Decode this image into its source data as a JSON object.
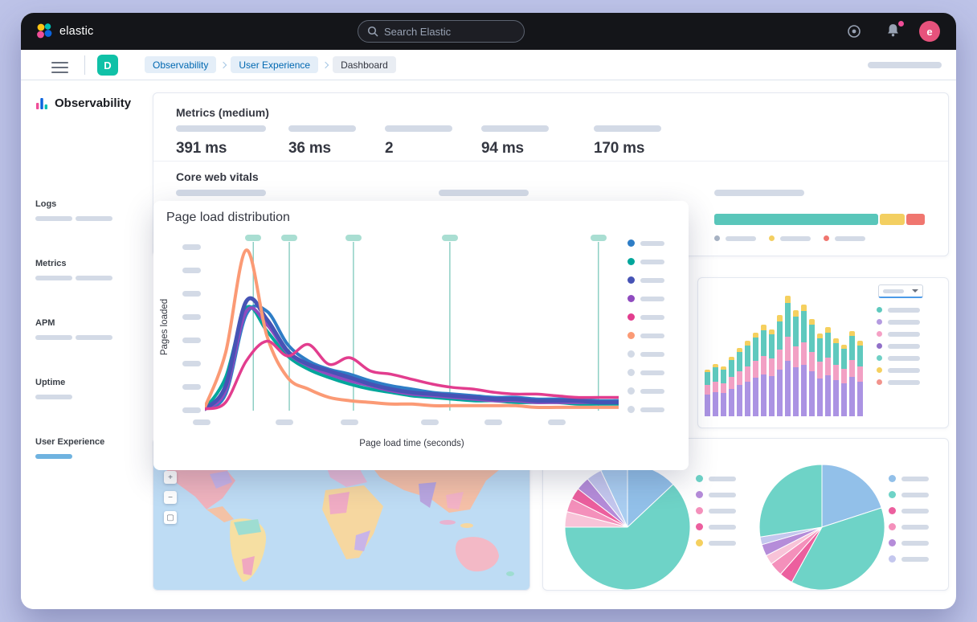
{
  "topbar": {
    "brand": "elastic",
    "search_placeholder": "Search Elastic",
    "avatar_initial": "e"
  },
  "nav": {
    "space_badge": "D",
    "breadcrumbs": [
      {
        "label": "Observability"
      },
      {
        "label": "User Experience"
      },
      {
        "label": "Dashboard"
      }
    ]
  },
  "sidebar": {
    "title": "Observability",
    "items": [
      {
        "label": "Logs"
      },
      {
        "label": "Metrics"
      },
      {
        "label": "APM"
      },
      {
        "label": "Uptime"
      },
      {
        "label": "User Experience",
        "active": true
      }
    ]
  },
  "metrics_panel": {
    "title": "Metrics (medium)",
    "values": [
      "391 ms",
      "36 ms",
      "2",
      "94 ms",
      "170 ms"
    ],
    "core_title": "Core web vitals"
  },
  "vitals": {
    "segments": [
      {
        "color": "#59c6ba",
        "pct": 79
      },
      {
        "color": "#f3cf61",
        "pct": 12
      },
      {
        "color": "#f0766f",
        "pct": 9
      }
    ],
    "legend_colors": [
      "#a7b2c3",
      "#f3cf61",
      "#f0766f"
    ]
  },
  "page_load": {
    "title": "Page load distribution",
    "ylabel": "Pages loaded",
    "xlabel": "Page load time (seconds)",
    "vlines": [
      0.117,
      0.204,
      0.359,
      0.592,
      0.951
    ],
    "y_tick_count": 8,
    "x_tick_offsets": [
      -15,
      88,
      169,
      269,
      348,
      427
    ],
    "series": [
      {
        "name": "blue",
        "color": "#2e7dc6",
        "width": 4,
        "points": [
          0.01,
          0.1,
          0.58,
          0.6,
          0.4,
          0.3,
          0.25,
          0.22,
          0.18,
          0.15,
          0.13,
          0.11,
          0.1,
          0.09,
          0.08,
          0.08,
          0.07,
          0.07,
          0.07,
          0.06,
          0.06
        ]
      },
      {
        "name": "teal",
        "color": "#00a69b",
        "width": 4,
        "points": [
          0.01,
          0.2,
          0.62,
          0.48,
          0.33,
          0.25,
          0.2,
          0.16,
          0.13,
          0.11,
          0.09,
          0.08,
          0.07,
          0.06,
          0.06,
          0.05,
          0.05,
          0.05,
          0.04,
          0.04,
          0.04
        ]
      },
      {
        "name": "purple",
        "color": "#8f4bbf",
        "width": 4,
        "points": [
          0.01,
          0.12,
          0.6,
          0.52,
          0.35,
          0.27,
          0.22,
          0.18,
          0.15,
          0.12,
          0.1,
          0.09,
          0.08,
          0.07,
          0.06,
          0.06,
          0.05,
          0.05,
          0.05,
          0.05,
          0.05
        ]
      },
      {
        "name": "indigo",
        "color": "#4653b5",
        "width": 5,
        "points": [
          0.01,
          0.15,
          0.66,
          0.55,
          0.36,
          0.28,
          0.24,
          0.2,
          0.16,
          0.13,
          0.11,
          0.1,
          0.09,
          0.08,
          0.07,
          0.07,
          0.06,
          0.06,
          0.06,
          0.05,
          0.05
        ]
      },
      {
        "name": "salmon",
        "color": "#fb9a75",
        "width": 4,
        "points": [
          0.02,
          0.35,
          0.97,
          0.45,
          0.2,
          0.13,
          0.08,
          0.06,
          0.05,
          0.04,
          0.04,
          0.03,
          0.03,
          0.03,
          0.03,
          0.03,
          0.02,
          0.02,
          0.02,
          0.02,
          0.02
        ]
      },
      {
        "name": "magenta",
        "color": "#e23d8e",
        "width": 3.5,
        "points": [
          0.01,
          0.05,
          0.3,
          0.42,
          0.33,
          0.4,
          0.28,
          0.32,
          0.24,
          0.22,
          0.19,
          0.16,
          0.14,
          0.13,
          0.11,
          0.1,
          0.1,
          0.09,
          0.08,
          0.08,
          0.08
        ]
      }
    ],
    "legend_colors": [
      "#2e7dc6",
      "#00a69b",
      "#4653b5",
      "#8f4bbf",
      "#e23d8e",
      "#fb9a75",
      "#d3dae6",
      "#d3dae6",
      "#d3dae6",
      "#d3dae6"
    ]
  },
  "bar_chart": {
    "totals": [
      58,
      66,
      62,
      74,
      84,
      94,
      104,
      114,
      108,
      126,
      149,
      132,
      140,
      121,
      103,
      111,
      97,
      89,
      107,
      93
    ],
    "ratios": [
      0.46,
      0.2,
      0.28,
      0.06
    ],
    "colors": [
      "#ab93e3",
      "#f2a0c4",
      "#5fc9be",
      "#f5d05f"
    ],
    "legend_colors": [
      "#5fc9be",
      "#b49be0",
      "#f5a0c5",
      "#9170c8",
      "#6fd0c5",
      "#f5d05f",
      "#f2938c"
    ]
  },
  "pies": [
    {
      "slices": [
        {
          "color": "#92c0e9",
          "pct": 13
        },
        {
          "color": "#6ed3c7",
          "pct": 62
        },
        {
          "color": "#f8c3d8",
          "pct": 4
        },
        {
          "color": "#f490bb",
          "pct": 3.5
        },
        {
          "color": "#ec5f9e",
          "pct": 3
        },
        {
          "color": "#b58cd9",
          "pct": 3.5
        },
        {
          "color": "#c4c7ee",
          "pct": 4
        },
        {
          "color": "#a9cdf0",
          "pct": 7
        }
      ],
      "legend": [
        "#6ed3c7",
        "#b58cd9",
        "#f490bb",
        "#ec5f9e",
        "#f5d05f"
      ]
    },
    {
      "slices": [
        {
          "color": "#92c0e9",
          "pct": 20
        },
        {
          "color": "#6ed3c7",
          "pct": 38
        },
        {
          "color": "#ec5f9e",
          "pct": 3.5
        },
        {
          "color": "#f490bb",
          "pct": 3.5
        },
        {
          "color": "#f8c3d8",
          "pct": 2.5
        },
        {
          "color": "#b58cd9",
          "pct": 3
        },
        {
          "color": "#c4c7ee",
          "pct": 2
        },
        {
          "color": "#6ed3c7",
          "pct": 27.5
        }
      ],
      "legend": [
        "#92c0e9",
        "#6ed3c7",
        "#ec5f9e",
        "#f490bb",
        "#b58cd9",
        "#c4c7ee"
      ]
    }
  ],
  "map": {
    "water": "#bedcf4"
  }
}
